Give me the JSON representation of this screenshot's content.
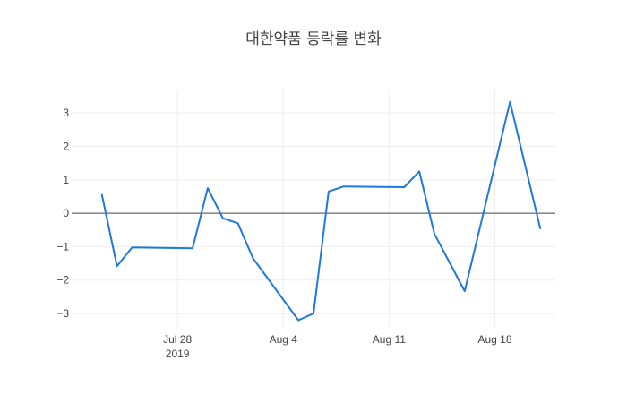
{
  "chart_data": {
    "type": "line",
    "title": "대한약품 등락률 변화",
    "xlabel": "",
    "ylabel": "",
    "x_range": [
      "2019-07-21",
      "2019-08-22"
    ],
    "ylim": [
      -3.4,
      3.7
    ],
    "grid": true,
    "zero_line": true,
    "x_ticks": [
      {
        "date": "2019-07-28",
        "label": "Jul 28",
        "sublabel": "2019"
      },
      {
        "date": "2019-08-04",
        "label": "Aug 4",
        "sublabel": ""
      },
      {
        "date": "2019-08-11",
        "label": "Aug 11",
        "sublabel": ""
      },
      {
        "date": "2019-08-18",
        "label": "Aug 18",
        "sublabel": ""
      }
    ],
    "y_ticks": [
      -3,
      -2,
      -1,
      0,
      1,
      2,
      3
    ],
    "y_tick_labels": [
      "−3",
      "−2",
      "−1",
      "0",
      "1",
      "2",
      "3"
    ],
    "series": [
      {
        "color": "#1f77e0",
        "points": [
          {
            "x": "2019-07-23",
            "y": 0.55
          },
          {
            "x": "2019-07-24",
            "y": -1.58
          },
          {
            "x": "2019-07-25",
            "y": -1.02
          },
          {
            "x": "2019-07-29",
            "y": -1.05
          },
          {
            "x": "2019-07-30",
            "y": 0.75
          },
          {
            "x": "2019-07-31",
            "y": -0.15
          },
          {
            "x": "2019-08-01",
            "y": -0.3
          },
          {
            "x": "2019-08-02",
            "y": -1.35
          },
          {
            "x": "2019-08-05",
            "y": -3.2
          },
          {
            "x": "2019-08-06",
            "y": -3.0
          },
          {
            "x": "2019-08-07",
            "y": 0.65
          },
          {
            "x": "2019-08-08",
            "y": 0.8
          },
          {
            "x": "2019-08-12",
            "y": 0.78
          },
          {
            "x": "2019-08-13",
            "y": 1.25
          },
          {
            "x": "2019-08-14",
            "y": -0.62
          },
          {
            "x": "2019-08-16",
            "y": -2.33
          },
          {
            "x": "2019-08-19",
            "y": 3.33
          },
          {
            "x": "2019-08-21",
            "y": -0.45
          }
        ]
      }
    ]
  }
}
